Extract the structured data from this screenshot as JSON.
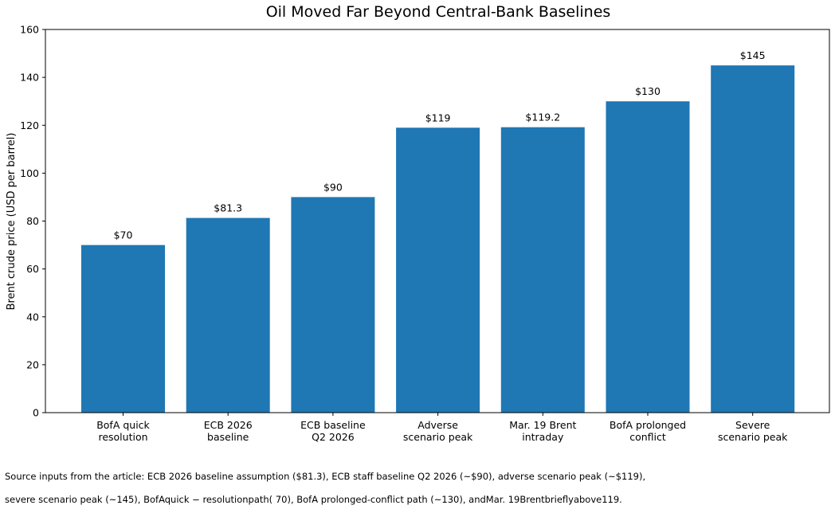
{
  "chart_data": {
    "type": "bar",
    "title": "Oil Moved Far Beyond Central-Bank Baselines",
    "xlabel": "",
    "ylabel": "Brent crude price (USD per barrel)",
    "ylim": [
      0,
      160
    ],
    "yticks": [
      0,
      20,
      40,
      60,
      80,
      100,
      120,
      140,
      160
    ],
    "grid": false,
    "bar_color": "#1f77b4",
    "categories": [
      "BofA quick\nresolution",
      "ECB 2026\nbaseline",
      "ECB baseline\nQ2 2026",
      "Adverse\nscenario peak",
      "Mar. 19 Brent\nintraday",
      "BofA prolonged\nconflict",
      "Severe\nscenario peak"
    ],
    "values": [
      70,
      81.3,
      90,
      119,
      119.2,
      130,
      145
    ],
    "data_labels": [
      "$70",
      "$81.3",
      "$90",
      "$119",
      "$119.2",
      "$130",
      "$145"
    ]
  },
  "footnote": {
    "line1": "Source inputs from the article: ECB 2026 baseline assumption ($81.3), ECB staff baseline Q2 2026 (~$90), adverse scenario peak (~$119),",
    "line2": "severe scenario peak (~145), BofAquick − resolutionpath( 70), BofA prolonged-conflict path (~130), andMar. 19Brentbrieflyabove119."
  }
}
